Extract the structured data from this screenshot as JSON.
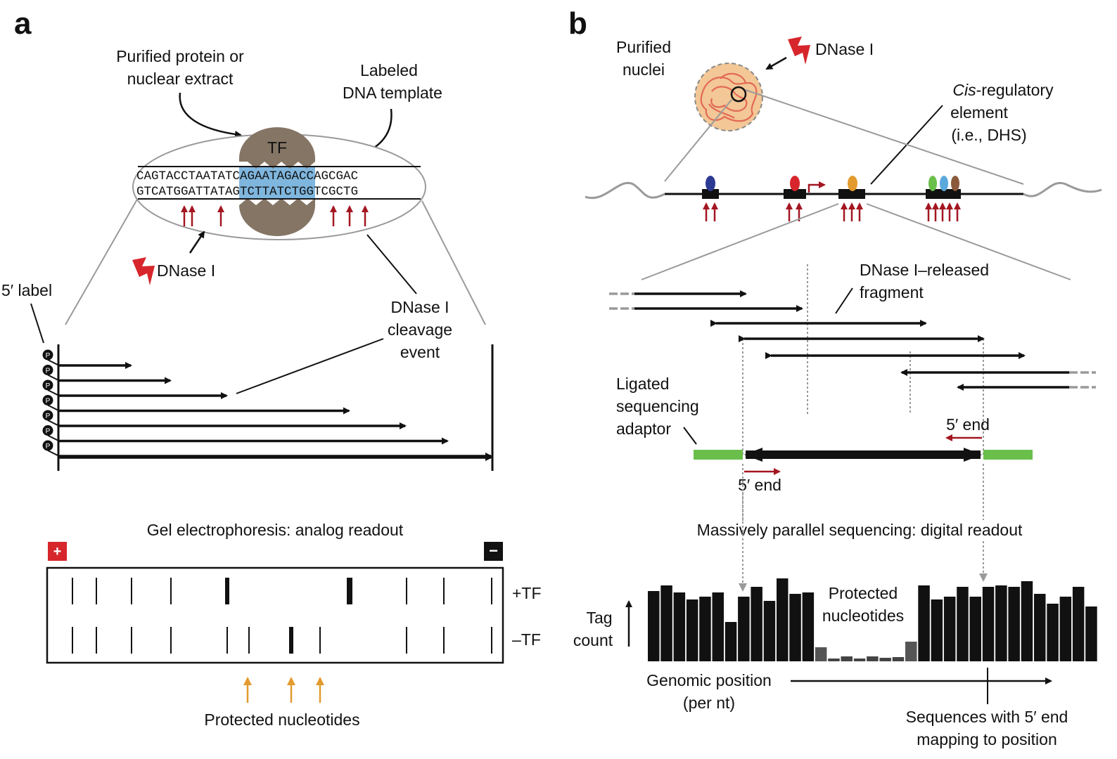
{
  "panel_a": {
    "letter": "a",
    "purified_protein_line1": "Purified protein or",
    "purified_protein_line2": "nuclear extract",
    "labeled_dna_line1": "Labeled",
    "labeled_dna_line2": "DNA template",
    "tf": "TF",
    "seq_top_left": "CAGTACCTAAT",
    "seq_top_mid": "ATCAGAAT",
    "seq_top_right": "AGACCAGCGAC",
    "seq_bottom_left": "GTCATGGATTA",
    "seq_bottom_mid": "TAGTCTTA",
    "seq_bottom_right": "TCTGGTCGCTG",
    "dnase": "DNase I",
    "five_prime_label": "5′ label",
    "phosphate": "P",
    "cleavage_line1": "DNase I",
    "cleavage_line2": "cleavage",
    "cleavage_line3": "event",
    "gel_title": "Gel electrophoresis: analog readout",
    "plus": "+",
    "minus": "−",
    "plus_tf": "+TF",
    "minus_tf": "–TF",
    "protected": "Protected nucleotides"
  },
  "panel_b": {
    "letter": "b",
    "nuclei_line1": "Purified",
    "nuclei_line2": "nuclei",
    "dnase": "DNase I",
    "cis_line1_italic": "Cis",
    "cis_line1_rest": "-regulatory",
    "cis_line2": "element",
    "cis_line3": "(i.e., DHS)",
    "released_line1": "DNase I–released",
    "released_line2": "fragment",
    "adaptor_line1": "Ligated",
    "adaptor_line2": "sequencing",
    "adaptor_line3": "adaptor",
    "five_end_top": "5′ end",
    "five_end_bottom": "5′ end",
    "seq_title": "Massively parallel sequencing: digital readout",
    "tag_line1": "Tag",
    "tag_line2": "count",
    "protected_line1": "Protected",
    "protected_line2": "nucleotides",
    "genomic_line1": "Genomic position",
    "genomic_line2": "(per nt)",
    "sequences_line1": "Sequences with 5′ end",
    "sequences_line2": "mapping to position"
  },
  "colors": {
    "black": "#111111",
    "dark_red": "#a31621",
    "lightning_red": "#d7262b",
    "tf_brown": "#857565",
    "highlight_blue": "#7fb6de",
    "adaptor_green": "#6abf4b",
    "protected_orange": "#e39a2e",
    "nucleus_fill": "#f3c796",
    "grey_line": "#9a9a9a"
  },
  "chart_data": {
    "type": "bar",
    "xlabel": "Genomic position (per nt)",
    "ylabel": "Tag count",
    "values": [
      100,
      108,
      98,
      88,
      92,
      98,
      56,
      92,
      106,
      86,
      118,
      96,
      98,
      20,
      4,
      7,
      4,
      7,
      5,
      6,
      28,
      108,
      88,
      92,
      106,
      92,
      106,
      108,
      106,
      114,
      96,
      82,
      92,
      106,
      78
    ],
    "protected_range": [
      13,
      20
    ]
  }
}
